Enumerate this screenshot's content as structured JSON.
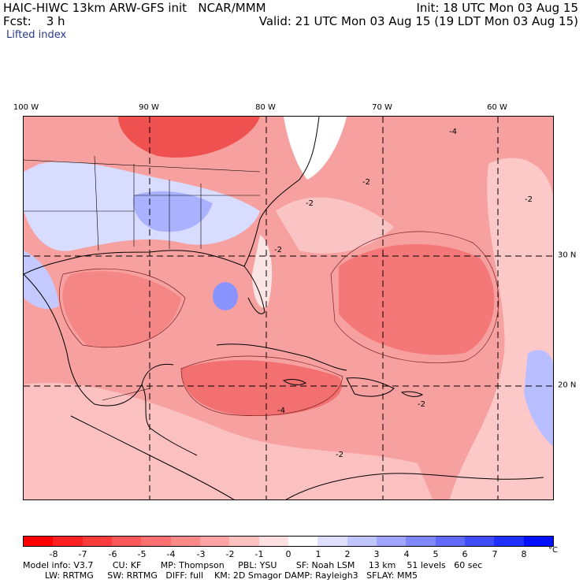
{
  "header": {
    "line1_left": "HAIC-HIWC 13km ARW-GFS init   NCAR/MMM",
    "line1_right": "Init: 18 UTC Mon 03 Aug 15",
    "line2_left": "Fcst:    3 h",
    "line2_right": "Valid: 21 UTC Mon 03 Aug 15 (19 LDT Mon 03 Aug 15)",
    "field": "Lifted index"
  },
  "map": {
    "lon_labels": [
      "100 W",
      "90 W",
      "80 W",
      "70 W",
      "60 W"
    ],
    "lat_labels": [
      "30 N",
      "20 N"
    ],
    "contour_labels": [
      "-2",
      "-4"
    ]
  },
  "colorbar": {
    "unit": "°C",
    "ticks": [
      "-8",
      "-7",
      "-6",
      "-5",
      "-4",
      "-3",
      "-2",
      "-1",
      "0",
      "1",
      "2",
      "3",
      "4",
      "5",
      "6",
      "7",
      "8"
    ],
    "colors": [
      "#ff0000",
      "#ff2020",
      "#ff3c3c",
      "#ff5858",
      "#ff7070",
      "#ff8a8a",
      "#ffa4a4",
      "#ffc0c0",
      "#ffe0e0",
      "#ffffff",
      "#dfe0ff",
      "#c0c4ff",
      "#a0a6ff",
      "#8088ff",
      "#606aff",
      "#404cff",
      "#2030ff",
      "#0010ff"
    ]
  },
  "footer": {
    "line1": "Model info: V3.7       CU: KF       MP: Thompson     PBL: YSU       SF: Noah LSM     13 km    51 levels   60 sec",
    "line2": "        LW: RRTMG     SW: RRTMG   DIFF: full    KM: 2D Smagor DAMP: Rayleigh3   SFLAY: MM5"
  }
}
